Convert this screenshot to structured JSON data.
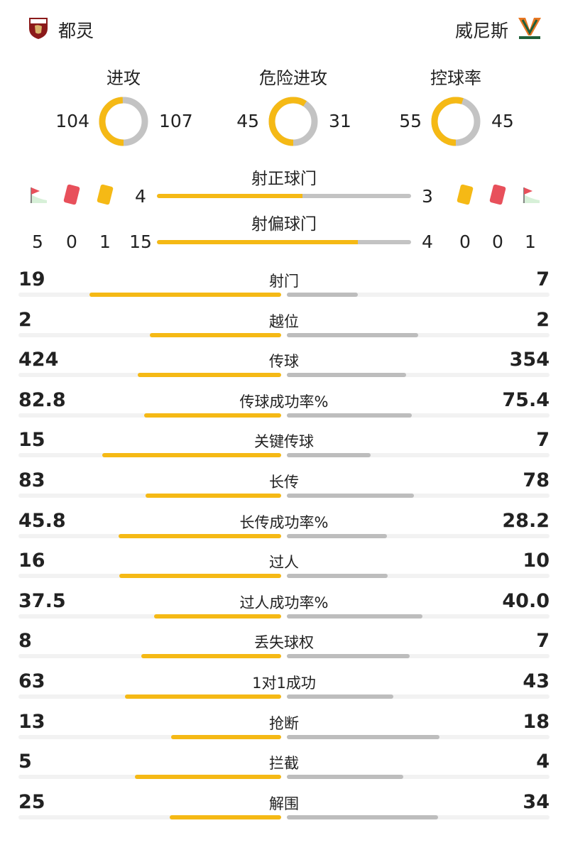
{
  "home": {
    "name": "都灵",
    "logo_icon": "torino-logo-icon",
    "logo_text": "TORINO FC"
  },
  "away": {
    "name": "威尼斯",
    "logo_icon": "venezia-logo-icon",
    "logo_text": "VENEZIA FC"
  },
  "colors": {
    "home": "#f5b915",
    "away": "#c3c3c3",
    "red_card": "#e8505b",
    "yellow_card": "#f5b915"
  },
  "rings": [
    {
      "label": "进攻",
      "home": 104,
      "away": 107
    },
    {
      "label": "危险进攻",
      "home": 45,
      "away": 31
    },
    {
      "label": "控球率",
      "home": 55,
      "away": 45
    }
  ],
  "shots": {
    "on_target": {
      "label": "射正球门",
      "home": 4,
      "away": 3
    },
    "off_target": {
      "label": "射偏球门",
      "home": 15,
      "away": 4
    }
  },
  "events": {
    "icons": [
      "corner-flag-icon",
      "red-card-icon",
      "yellow-card-icon"
    ],
    "home": {
      "corners": 5,
      "red": 0,
      "yellow": 1
    },
    "away": {
      "yellow": 0,
      "red": 0,
      "corners": 1
    }
  },
  "stats": [
    {
      "label": "射门",
      "home": "19",
      "away": "7",
      "home_ratio": 0.73,
      "away_ratio": 0.27
    },
    {
      "label": "越位",
      "home": "2",
      "away": "2",
      "home_ratio": 0.5,
      "away_ratio": 0.5
    },
    {
      "label": "传球",
      "home": "424",
      "away": "354",
      "home_ratio": 0.545,
      "away_ratio": 0.455
    },
    {
      "label": "传球成功率%",
      "home": "82.8",
      "away": "75.4",
      "home_ratio": 0.523,
      "away_ratio": 0.477
    },
    {
      "label": "关键传球",
      "home": "15",
      "away": "7",
      "home_ratio": 0.682,
      "away_ratio": 0.318
    },
    {
      "label": "长传",
      "home": "83",
      "away": "78",
      "home_ratio": 0.516,
      "away_ratio": 0.484
    },
    {
      "label": "长传成功率%",
      "home": "45.8",
      "away": "28.2",
      "home_ratio": 0.619,
      "away_ratio": 0.381
    },
    {
      "label": "过人",
      "home": "16",
      "away": "10",
      "home_ratio": 0.615,
      "away_ratio": 0.385
    },
    {
      "label": "过人成功率%",
      "home": "37.5",
      "away": "40.0",
      "home_ratio": 0.484,
      "away_ratio": 0.516
    },
    {
      "label": "丢失球权",
      "home": "8",
      "away": "7",
      "home_ratio": 0.533,
      "away_ratio": 0.467
    },
    {
      "label": "1对1成功",
      "home": "63",
      "away": "43",
      "home_ratio": 0.594,
      "away_ratio": 0.406
    },
    {
      "label": "抢断",
      "home": "13",
      "away": "18",
      "home_ratio": 0.419,
      "away_ratio": 0.581
    },
    {
      "label": "拦截",
      "home": "5",
      "away": "4",
      "home_ratio": 0.556,
      "away_ratio": 0.444
    },
    {
      "label": "解围",
      "home": "25",
      "away": "34",
      "home_ratio": 0.424,
      "away_ratio": 0.576
    }
  ]
}
